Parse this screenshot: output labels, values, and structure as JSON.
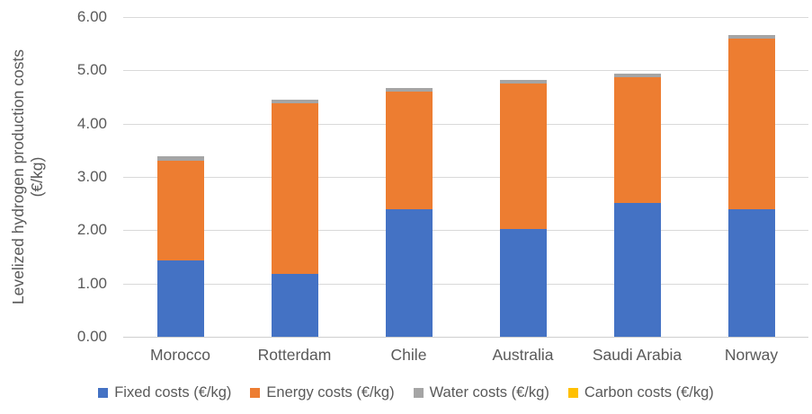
{
  "chart_data": {
    "type": "bar",
    "stacked": true,
    "title": "",
    "ylabel": "Levelized hydrogen production costs (€/kg)",
    "ylabel_lines": [
      "Levelized hydrogen production costs",
      "(€/kg)"
    ],
    "xlabel": "",
    "categories": [
      "Morocco",
      "Rotterdam",
      "Chile",
      "Australia",
      "Saudi Arabia",
      "Norway"
    ],
    "series": [
      {
        "name": "Fixed costs (€/kg)",
        "color": "#4472C4",
        "values": [
          1.43,
          1.18,
          2.4,
          2.03,
          2.51,
          2.4
        ]
      },
      {
        "name": "Energy costs (€/kg)",
        "color": "#ED7D31",
        "values": [
          1.88,
          3.2,
          2.2,
          2.72,
          2.36,
          3.2
        ]
      },
      {
        "name": "Water costs (€/kg)",
        "color": "#A5A5A5",
        "values": [
          0.07,
          0.07,
          0.07,
          0.07,
          0.07,
          0.07
        ]
      },
      {
        "name": "Carbon costs (€/kg)",
        "color": "#FFC000",
        "values": [
          0,
          0,
          0,
          0,
          0,
          0
        ]
      }
    ],
    "totals": [
      3.38,
      4.45,
      4.67,
      4.82,
      4.94,
      5.67
    ],
    "ylim": [
      0,
      6
    ],
    "ytick_step": 1,
    "yticks": [
      "0.00",
      "1.00",
      "2.00",
      "3.00",
      "4.00",
      "5.00",
      "6.00"
    ],
    "grid": true,
    "gridline_color": "#D9D9D9",
    "text_color": "#595959",
    "legend_position": "bottom"
  }
}
